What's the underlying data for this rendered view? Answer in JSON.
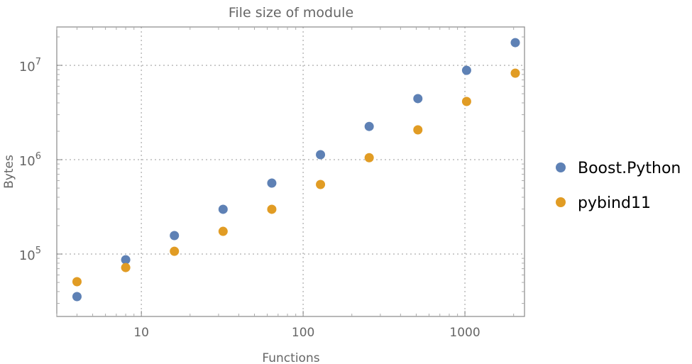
{
  "chart_data": {
    "type": "scatter",
    "title": "File size of module",
    "xlabel": "Functions",
    "ylabel": "Bytes",
    "xscale": "log",
    "yscale": "log",
    "xlim": [
      3.0,
      2335
    ],
    "ylim": [
      21800,
      25500000
    ],
    "grid": true,
    "legend_position": "right",
    "x_ticks": [
      {
        "value": 10,
        "label": "10"
      },
      {
        "value": 100,
        "label": "100"
      },
      {
        "value": 1000,
        "label": "1000"
      }
    ],
    "y_ticks": [
      {
        "value": 100000,
        "base": "10",
        "exp": "5"
      },
      {
        "value": 1000000,
        "base": "10",
        "exp": "6"
      },
      {
        "value": 10000000,
        "base": "10",
        "exp": "7"
      }
    ],
    "x": [
      4,
      8,
      16,
      32,
      64,
      128,
      256,
      512,
      1024,
      2048
    ],
    "series": [
      {
        "name": "Boost.Python",
        "color": "#5E81B5",
        "values": [
          35400,
          87000,
          157000,
          298000,
          565000,
          1130000,
          2250000,
          4440000,
          8850000,
          17400000
        ]
      },
      {
        "name": "pybind11",
        "color": "#E19C24",
        "values": [
          50900,
          71900,
          107000,
          174000,
          298000,
          546000,
          1050000,
          2070000,
          4140000,
          8260000
        ]
      }
    ]
  }
}
